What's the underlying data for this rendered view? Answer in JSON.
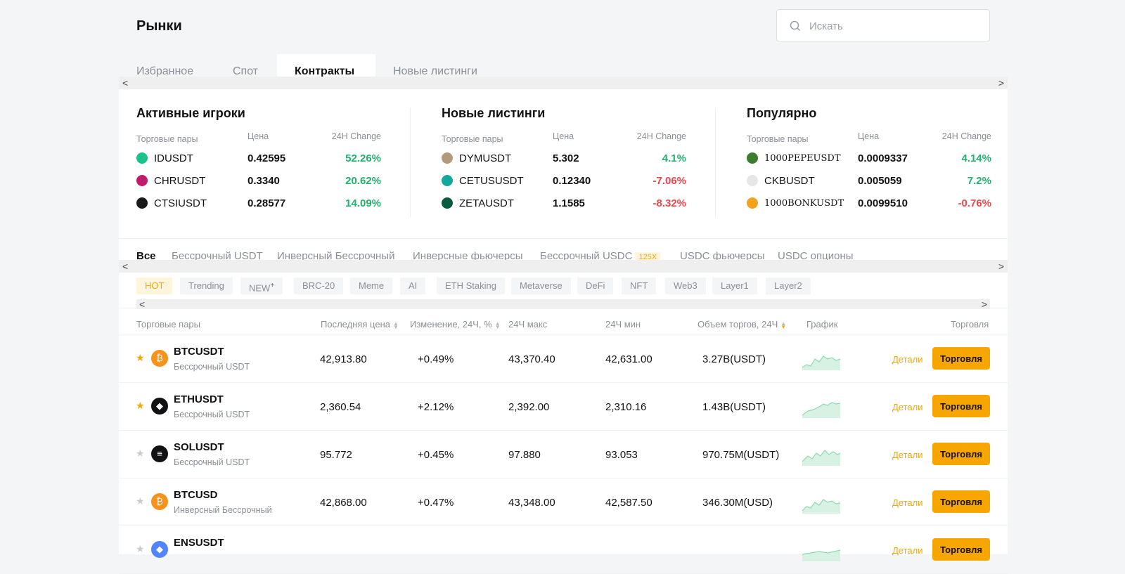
{
  "header": {
    "title": "Рынки",
    "search_placeholder": "Искать"
  },
  "main_tabs": [
    "Избранное",
    "Спот",
    "Контракты",
    "Новые листинги"
  ],
  "panels": [
    {
      "title": "Активные игроки",
      "headers": [
        "Торговые пары",
        "Цена",
        "24H Change"
      ],
      "rows": [
        {
          "symbol": "IDUSDT",
          "price": "0.42595",
          "change": "52.26%",
          "dir": "pos",
          "color": "#1cc28b"
        },
        {
          "symbol": "CHRUSDT",
          "price": "0.3340",
          "change": "20.62%",
          "dir": "pos",
          "color": "#c3196a"
        },
        {
          "symbol": "CTSIUSDT",
          "price": "0.28577",
          "change": "14.09%",
          "dir": "pos",
          "color": "#1a1a1a"
        }
      ]
    },
    {
      "title": "Новые листинги",
      "headers": [
        "Торговые пары",
        "Цена",
        "24H Change"
      ],
      "rows": [
        {
          "symbol": "DYMUSDT",
          "price": "5.302",
          "change": "4.1%",
          "dir": "pos",
          "color": "#b49a7a"
        },
        {
          "symbol": "CETUSUSDT",
          "price": "0.12340",
          "change": "-7.06%",
          "dir": "neg",
          "color": "#12a8a0"
        },
        {
          "symbol": "ZETAUSDT",
          "price": "1.1585",
          "change": "-8.32%",
          "dir": "neg",
          "color": "#0b5b3e"
        }
      ]
    },
    {
      "title": "Популярно",
      "headers": [
        "Торговые пары",
        "Цена",
        "24H Change"
      ],
      "rows": [
        {
          "symbol": "1000PEPEUSDT",
          "price": "0.0009337",
          "change": "4.14%",
          "dir": "pos",
          "color": "#3a7d2c"
        },
        {
          "symbol": "CKBUSDT",
          "price": "0.005059",
          "change": "7.2%",
          "dir": "pos",
          "color": "#e6e6e6"
        },
        {
          "symbol": "1000BONKUSDT",
          "price": "0.0099510",
          "change": "-0.76%",
          "dir": "neg",
          "color": "#f3a21d"
        }
      ]
    }
  ],
  "category_tabs": [
    "Все",
    "Бессрочный USDT",
    "Инверсный Бессрочный",
    "Инверсные фьючерсы",
    "Бессрочный USDC",
    "USDC фьючерсы",
    "USDC опционы"
  ],
  "category_badge": "125X",
  "chips": [
    "HOT",
    "Trending",
    "NEW",
    "BRC-20",
    "Meme",
    "AI",
    "ETH Staking",
    "Metaverse",
    "DeFi",
    "NFT",
    "Web3",
    "Layer1",
    "Layer2"
  ],
  "new_chip_mark": "+",
  "table": {
    "headers": {
      "pair": "Торговые пары",
      "last_price": "Последняя цена",
      "change": "Изменение, 24Ч, %",
      "high": "24Ч макс",
      "low": "24Ч мин",
      "volume": "Объем торгов, 24Ч",
      "chart": "График",
      "trade": "Торговля"
    },
    "detail_label": "Детали",
    "trade_label": "Торговля",
    "rows": [
      {
        "symbol": "BTCUSDT",
        "type": "Бессрочный USDT",
        "price": "42,913.80",
        "change": "+0.49%",
        "high": "43,370.40",
        "low": "42,631.00",
        "volume": "3.27B(USDT)",
        "fav": true,
        "color": "#f7931a",
        "glyph": "₿"
      },
      {
        "symbol": "ETHUSDT",
        "type": "Бессрочный USDT",
        "price": "2,360.54",
        "change": "+2.12%",
        "high": "2,392.00",
        "low": "2,310.16",
        "volume": "1.43B(USDT)",
        "fav": true,
        "color": "#121214",
        "glyph": "◆"
      },
      {
        "symbol": "SOLUSDT",
        "type": "Бессрочный USDT",
        "price": "95.772",
        "change": "+0.45%",
        "high": "97.880",
        "low": "93.053",
        "volume": "970.75M(USDT)",
        "fav": false,
        "color": "#121214",
        "glyph": "≡"
      },
      {
        "symbol": "BTCUSD",
        "type": "Инверсный Бессрочный",
        "price": "42,868.00",
        "change": "+0.47%",
        "high": "43,348.00",
        "low": "42,587.50",
        "volume": "346.30M(USD)",
        "fav": false,
        "color": "#f7931a",
        "glyph": "₿"
      },
      {
        "symbol": "ENSUSDT",
        "type": "",
        "price": "",
        "change": "",
        "high": "",
        "low": "",
        "volume": "",
        "fav": false,
        "color": "#5284ff",
        "glyph": "◆"
      }
    ]
  },
  "colors": {
    "accent": "#f7a600",
    "positive": "#20b26c",
    "negative": "#ef454a"
  }
}
